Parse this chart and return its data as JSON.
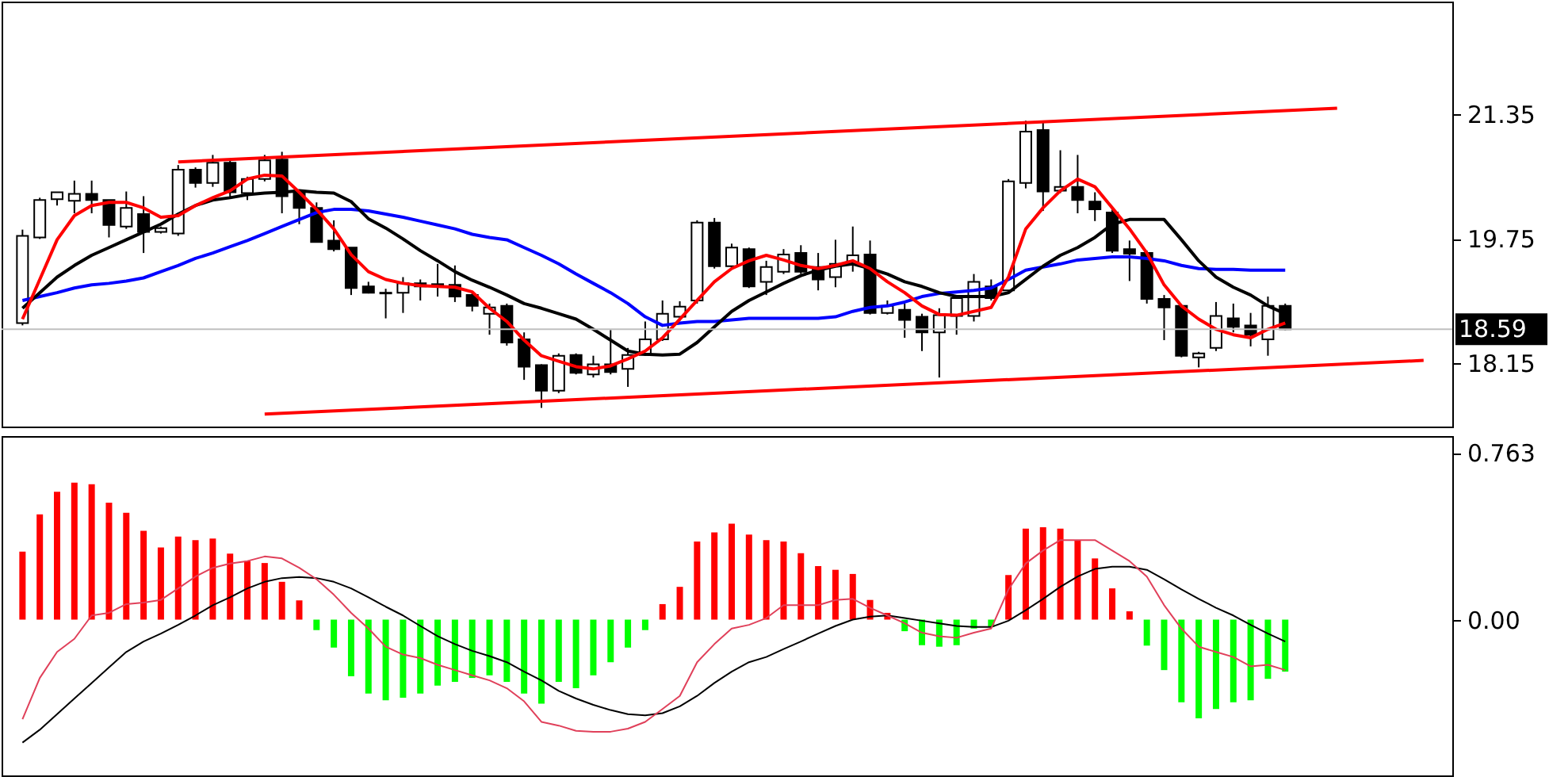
{
  "chart_data": [
    {
      "type": "candlestick",
      "categories": [
        null,
        null,
        null,
        null,
        null,
        null,
        null,
        null,
        null,
        null,
        null,
        null,
        null,
        null,
        null,
        null,
        null,
        null,
        null,
        null,
        null,
        null,
        null,
        null,
        null,
        null,
        null,
        null,
        null,
        null,
        null,
        null,
        null,
        null,
        null,
        null,
        null,
        null,
        null,
        null,
        null,
        null,
        null,
        null,
        null,
        null,
        null,
        null,
        null,
        null,
        null,
        null,
        null,
        null,
        null,
        null,
        null,
        null,
        null,
        null,
        null,
        null,
        null,
        null,
        null,
        null,
        null,
        null,
        null,
        null,
        null,
        null,
        null,
        null,
        null,
        null,
        null,
        null,
        null,
        null,
        null,
        null
      ],
      "ohlc": [
        [
          18.67,
          19.87,
          18.64,
          19.79
        ],
        [
          19.77,
          20.28,
          19.75,
          20.25
        ],
        [
          20.26,
          20.35,
          20.18,
          20.35
        ],
        [
          20.24,
          20.5,
          20.08,
          20.33
        ],
        [
          20.33,
          20.5,
          20.08,
          20.25
        ],
        [
          20.25,
          20.25,
          19.77,
          19.93
        ],
        [
          19.91,
          20.36,
          19.88,
          20.15
        ],
        [
          20.07,
          20.3,
          19.57,
          19.84
        ],
        [
          19.84,
          19.91,
          19.82,
          19.89
        ],
        [
          19.82,
          20.7,
          19.79,
          20.64
        ],
        [
          20.64,
          20.67,
          20.41,
          20.47
        ],
        [
          20.47,
          20.83,
          20.42,
          20.73
        ],
        [
          20.73,
          20.76,
          20.28,
          20.35
        ],
        [
          20.34,
          20.55,
          20.25,
          20.52
        ],
        [
          20.52,
          20.83,
          20.49,
          20.76
        ],
        [
          20.77,
          20.87,
          20.08,
          20.3
        ],
        [
          20.35,
          20.38,
          19.94,
          20.15
        ],
        [
          20.15,
          20.22,
          19.71,
          19.71
        ],
        [
          19.73,
          19.99,
          19.59,
          19.62
        ],
        [
          19.64,
          19.64,
          19.03,
          19.12
        ],
        [
          19.14,
          19.2,
          19.05,
          19.06
        ],
        [
          19.06,
          19.11,
          18.73,
          19.05
        ],
        [
          19.06,
          19.26,
          18.8,
          19.18
        ],
        [
          19.18,
          19.23,
          18.96,
          19.14
        ],
        [
          19.17,
          19.43,
          19.01,
          19.16
        ],
        [
          19.16,
          19.41,
          18.94,
          19.01
        ],
        [
          19.03,
          19.06,
          18.82,
          18.89
        ],
        [
          18.79,
          18.92,
          18.52,
          18.87
        ],
        [
          18.89,
          18.92,
          18.38,
          18.42
        ],
        [
          18.46,
          18.55,
          17.94,
          18.11
        ],
        [
          18.13,
          18.14,
          17.58,
          17.8
        ],
        [
          17.8,
          18.28,
          17.77,
          18.25
        ],
        [
          18.26,
          18.28,
          18.01,
          18.03
        ],
        [
          18.01,
          18.25,
          17.97,
          18.14
        ],
        [
          18.14,
          18.58,
          18.01,
          18.04
        ],
        [
          18.08,
          18.35,
          17.85,
          18.26
        ],
        [
          18.26,
          18.69,
          18.25,
          18.46
        ],
        [
          18.46,
          18.96,
          18.44,
          18.79
        ],
        [
          18.75,
          18.95,
          18.7,
          18.88
        ],
        [
          18.96,
          19.99,
          18.92,
          19.96
        ],
        [
          19.96,
          20.02,
          19.37,
          19.4
        ],
        [
          19.4,
          19.69,
          19.37,
          19.64
        ],
        [
          19.62,
          19.64,
          19.12,
          19.14
        ],
        [
          19.2,
          19.47,
          19.03,
          19.39
        ],
        [
          19.33,
          19.62,
          19.3,
          19.55
        ],
        [
          19.57,
          19.67,
          19.3,
          19.33
        ],
        [
          19.39,
          19.57,
          19.09,
          19.23
        ],
        [
          19.26,
          19.74,
          19.13,
          19.43
        ],
        [
          19.43,
          19.91,
          19.33,
          19.54
        ],
        [
          19.55,
          19.73,
          18.78,
          18.8
        ],
        [
          18.8,
          18.96,
          18.78,
          18.89
        ],
        [
          18.84,
          18.92,
          18.48,
          18.71
        ],
        [
          18.75,
          18.79,
          18.31,
          18.55
        ],
        [
          18.55,
          18.86,
          17.97,
          18.77
        ],
        [
          18.76,
          19.03,
          18.52,
          18.99
        ],
        [
          18.76,
          19.3,
          18.69,
          19.2
        ],
        [
          19.14,
          19.23,
          18.96,
          18.99
        ],
        [
          19.09,
          20.52,
          19.06,
          20.49
        ],
        [
          20.47,
          21.27,
          20.4,
          21.13
        ],
        [
          21.15,
          21.27,
          20.11,
          20.36
        ],
        [
          20.37,
          20.89,
          20.34,
          20.42
        ],
        [
          20.42,
          20.83,
          20.08,
          20.25
        ],
        [
          20.23,
          20.35,
          19.98,
          20.13
        ],
        [
          20.09,
          20.13,
          19.57,
          19.6
        ],
        [
          19.62,
          19.73,
          19.21,
          19.56
        ],
        [
          19.57,
          19.6,
          18.92,
          18.98
        ],
        [
          18.98,
          19.03,
          18.45,
          18.87
        ],
        [
          18.89,
          18.89,
          18.23,
          18.25
        ],
        [
          18.23,
          18.3,
          18.1,
          18.28
        ],
        [
          18.35,
          18.94,
          18.31,
          18.76
        ],
        [
          18.73,
          18.92,
          18.55,
          18.62
        ],
        [
          18.64,
          18.8,
          18.37,
          18.52
        ],
        [
          18.46,
          19.01,
          18.25,
          18.89
        ],
        [
          18.89,
          18.92,
          18.58,
          18.59
        ],
        null,
        null,
        null,
        null,
        null,
        null,
        null,
        null
      ],
      "series": [
        {
          "type": "line",
          "color": "#0000ff",
          "values": [
            18.96,
            19.01,
            19.06,
            19.12,
            19.16,
            19.18,
            19.21,
            19.25,
            19.33,
            19.41,
            19.5,
            19.57,
            19.65,
            19.73,
            19.82,
            19.91,
            20.0,
            20.09,
            20.13,
            20.13,
            20.11,
            20.07,
            20.03,
            19.98,
            19.93,
            19.88,
            19.81,
            19.77,
            19.74,
            19.64,
            19.54,
            19.43,
            19.3,
            19.18,
            19.06,
            18.92,
            18.75,
            18.64,
            18.67,
            18.69,
            18.69,
            18.71,
            18.73,
            18.73,
            18.73,
            18.73,
            18.73,
            18.75,
            18.82,
            18.87,
            18.89,
            18.94,
            19.01,
            19.05,
            19.07,
            19.09,
            19.12,
            19.23,
            19.35,
            19.39,
            19.43,
            19.48,
            19.5,
            19.52,
            19.52,
            19.5,
            19.47,
            19.41,
            19.37,
            19.36,
            19.36,
            19.35,
            19.35,
            19.35,
            null,
            null,
            null,
            null,
            null,
            null,
            null,
            null
          ]
        },
        {
          "type": "line",
          "color": "#000000",
          "values": [
            18.86,
            19.06,
            19.26,
            19.41,
            19.54,
            19.64,
            19.74,
            19.84,
            19.94,
            20.07,
            20.18,
            20.25,
            20.28,
            20.32,
            20.34,
            20.35,
            20.37,
            20.35,
            20.34,
            20.23,
            20.01,
            19.89,
            19.75,
            19.6,
            19.47,
            19.33,
            19.22,
            19.13,
            19.03,
            18.92,
            18.86,
            18.79,
            18.72,
            18.59,
            18.45,
            18.31,
            18.27,
            18.26,
            18.27,
            18.42,
            18.62,
            18.82,
            18.96,
            19.07,
            19.18,
            19.28,
            19.35,
            19.4,
            19.43,
            19.37,
            19.3,
            19.2,
            19.14,
            19.06,
            19.01,
            19.01,
            19.01,
            19.06,
            19.23,
            19.4,
            19.54,
            19.64,
            19.77,
            19.94,
            20.0,
            20.0,
            20.0,
            19.74,
            19.47,
            19.26,
            19.13,
            19.03,
            18.89,
            18.79,
            null,
            null,
            null,
            null,
            null,
            null,
            null,
            null
          ]
        },
        {
          "type": "line",
          "color": "#ff0000",
          "values": [
            18.72,
            19.23,
            19.74,
            20.05,
            20.18,
            20.22,
            20.22,
            20.15,
            20.03,
            20.05,
            20.18,
            20.28,
            20.37,
            20.52,
            20.57,
            20.56,
            20.35,
            20.13,
            19.88,
            19.55,
            19.33,
            19.23,
            19.18,
            19.15,
            19.14,
            19.13,
            19.07,
            18.86,
            18.69,
            18.45,
            18.25,
            18.18,
            18.11,
            18.08,
            18.12,
            18.21,
            18.31,
            18.48,
            18.72,
            18.96,
            19.2,
            19.37,
            19.47,
            19.54,
            19.48,
            19.41,
            19.37,
            19.41,
            19.47,
            19.37,
            19.2,
            19.06,
            18.89,
            18.78,
            18.77,
            18.82,
            18.87,
            19.26,
            19.88,
            20.15,
            20.37,
            20.52,
            20.42,
            20.15,
            19.88,
            19.57,
            19.16,
            18.89,
            18.72,
            18.59,
            18.52,
            18.48,
            18.59,
            18.67,
            null,
            null,
            null,
            null,
            null,
            null,
            null,
            null
          ]
        },
        {
          "type": "line",
          "color": "#ff0000",
          "values": [
            null,
            null,
            null,
            null,
            null,
            null,
            null,
            null,
            null,
            20.74,
            null,
            null,
            null,
            null,
            null,
            null,
            null,
            null,
            null,
            null,
            null,
            null,
            null,
            null,
            null,
            null,
            null,
            null,
            null,
            null,
            null,
            null,
            null,
            null,
            null,
            null,
            null,
            null,
            null,
            null,
            null,
            null,
            null,
            null,
            null,
            null,
            null,
            null,
            null,
            null,
            null,
            null,
            null,
            null,
            null,
            null,
            null,
            null,
            null,
            null,
            null,
            null,
            null,
            null,
            null,
            null,
            null,
            null,
            null,
            null,
            null,
            null,
            null,
            null,
            null,
            null,
            21.43,
            null,
            null,
            null,
            null,
            null
          ]
        },
        {
          "type": "line",
          "color": "#ff0000",
          "values": [
            null,
            null,
            null,
            null,
            null,
            null,
            null,
            null,
            null,
            null,
            null,
            null,
            null,
            null,
            17.5,
            null,
            null,
            null,
            null,
            null,
            null,
            null,
            null,
            null,
            null,
            null,
            null,
            null,
            null,
            null,
            null,
            null,
            null,
            null,
            null,
            null,
            null,
            null,
            null,
            null,
            null,
            null,
            null,
            null,
            null,
            null,
            null,
            null,
            null,
            null,
            null,
            null,
            null,
            null,
            null,
            null,
            null,
            null,
            null,
            null,
            null,
            null,
            null,
            null,
            null,
            null,
            null,
            null,
            null,
            null,
            null,
            null,
            null,
            null,
            null,
            null,
            null,
            null,
            null,
            null,
            null,
            18.19
          ]
        }
      ],
      "ylim": [
        17.34,
        22.8
      ],
      "yticks": [
        18.15,
        19.75,
        21.35
      ],
      "ref_lines": [
        {
          "axis": "y",
          "value": 18.59,
          "label": "18.59",
          "color": "#c0c0c0"
        }
      ],
      "tick_labels": "y"
    },
    {
      "type": "bar",
      "categories": [
        null,
        null,
        null,
        null,
        null,
        null,
        null,
        null,
        null,
        null,
        null,
        null,
        null,
        null,
        null,
        null,
        null,
        null,
        null,
        null,
        null,
        null,
        null,
        null,
        null,
        null,
        null,
        null,
        null,
        null,
        null,
        null,
        null,
        null,
        null,
        null,
        null,
        null,
        null,
        null,
        null,
        null,
        null,
        null,
        null,
        null,
        null,
        null,
        null,
        null,
        null,
        null,
        null,
        null,
        null,
        null,
        null,
        null,
        null,
        null,
        null,
        null,
        null,
        null,
        null,
        null,
        null,
        null,
        null,
        null,
        null,
        null,
        null,
        null,
        null,
        null,
        null,
        null,
        null,
        null,
        null,
        null
      ],
      "series": [
        {
          "type": "bar",
          "values": [
            0.311,
            0.482,
            0.585,
            0.627,
            0.62,
            0.535,
            0.489,
            0.406,
            0.33,
            0.38,
            0.364,
            0.371,
            0.302,
            0.268,
            0.259,
            0.173,
            0.088,
            -0.048,
            -0.128,
            -0.259,
            -0.338,
            -0.369,
            -0.357,
            -0.338,
            -0.302,
            -0.285,
            -0.267,
            -0.255,
            -0.285,
            -0.338,
            -0.385,
            -0.285,
            -0.314,
            -0.255,
            -0.195,
            -0.128,
            -0.048,
            0.071,
            0.15,
            0.357,
            0.399,
            0.439,
            0.389,
            0.364,
            0.357,
            0.304,
            0.245,
            0.228,
            0.209,
            0.09,
            0.031,
            -0.053,
            -0.117,
            -0.124,
            -0.117,
            -0.041,
            -0.034,
            0.204,
            0.416,
            0.423,
            0.416,
            0.364,
            0.28,
            0.143,
            0.038,
            -0.119,
            -0.231,
            -0.378,
            -0.452,
            -0.409,
            -0.378,
            -0.369,
            -0.271,
            -0.238,
            null,
            null,
            null,
            null,
            null,
            null,
            null,
            null
          ],
          "colors": [
            "#ff0000",
            "#ff0000",
            "#ff0000",
            "#ff0000",
            "#ff0000",
            "#ff0000",
            "#ff0000",
            "#ff0000",
            "#ff0000",
            "#ff0000",
            "#ff0000",
            "#ff0000",
            "#ff0000",
            "#ff0000",
            "#ff0000",
            "#ff0000",
            "#ff0000",
            "#00ff00",
            "#00ff00",
            "#00ff00",
            "#00ff00",
            "#00ff00",
            "#00ff00",
            "#00ff00",
            "#00ff00",
            "#00ff00",
            "#00ff00",
            "#00ff00",
            "#00ff00",
            "#00ff00",
            "#00ff00",
            "#00ff00",
            "#00ff00",
            "#00ff00",
            "#00ff00",
            "#00ff00",
            "#00ff00",
            "#ff0000",
            "#ff0000",
            "#ff0000",
            "#ff0000",
            "#ff0000",
            "#ff0000",
            "#ff0000",
            "#ff0000",
            "#ff0000",
            "#ff0000",
            "#ff0000",
            "#ff0000",
            "#ff0000",
            "#ff0000",
            "#00ff00",
            "#00ff00",
            "#00ff00",
            "#00ff00",
            "#00ff00",
            "#00ff00",
            "#ff0000",
            "#ff0000",
            "#ff0000",
            "#ff0000",
            "#ff0000",
            "#ff0000",
            "#ff0000",
            "#ff0000",
            "#00ff00",
            "#00ff00",
            "#00ff00",
            "#00ff00",
            "#00ff00",
            "#00ff00",
            "#00ff00",
            "#00ff00",
            "#00ff00",
            null,
            null,
            null,
            null,
            null,
            null,
            null,
            null
          ]
        },
        {
          "type": "line",
          "color": "#000000",
          "values": [
            -0.563,
            -0.504,
            -0.433,
            -0.361,
            -0.29,
            -0.219,
            -0.148,
            -0.1,
            -0.064,
            -0.024,
            0.019,
            0.066,
            0.102,
            0.143,
            0.173,
            0.19,
            0.195,
            0.19,
            0.173,
            0.143,
            0.102,
            0.059,
            0.019,
            -0.029,
            -0.076,
            -0.112,
            -0.143,
            -0.167,
            -0.195,
            -0.238,
            -0.278,
            -0.326,
            -0.361,
            -0.39,
            -0.414,
            -0.433,
            -0.438,
            -0.428,
            -0.397,
            -0.349,
            -0.29,
            -0.238,
            -0.195,
            -0.171,
            -0.135,
            -0.1,
            -0.064,
            -0.029,
            0,
            0.014,
            0.019,
            0.007,
            -0.005,
            -0.017,
            -0.029,
            -0.034,
            -0.034,
            -0.005,
            0.043,
            0.095,
            0.15,
            0.197,
            0.232,
            0.242,
            0.242,
            0.228,
            0.185,
            0.138,
            0.095,
            0.054,
            0.019,
            -0.024,
            -0.064,
            -0.1,
            null,
            null,
            null,
            null,
            null,
            null,
            null,
            null
          ]
        },
        {
          "type": "line",
          "color": "#e0405a",
          "values": [
            -0.456,
            -0.267,
            -0.148,
            -0.088,
            0.019,
            0.031,
            0.071,
            0.078,
            0.09,
            0.143,
            0.197,
            0.237,
            0.257,
            0.268,
            0.289,
            0.28,
            0.237,
            0.185,
            0.114,
            0.031,
            -0.041,
            -0.124,
            -0.16,
            -0.176,
            -0.207,
            -0.231,
            -0.255,
            -0.278,
            -0.314,
            -0.374,
            -0.468,
            -0.485,
            -0.509,
            -0.513,
            -0.513,
            -0.499,
            -0.468,
            -0.409,
            -0.349,
            -0.195,
            -0.112,
            -0.041,
            -0.024,
            0.007,
            0.066,
            0.066,
            0.066,
            0.09,
            0.095,
            0.054,
            0.019,
            -0.017,
            -0.06,
            -0.076,
            -0.083,
            -0.06,
            -0.041,
            0.138,
            0.257,
            0.316,
            0.364,
            0.364,
            0.364,
            0.316,
            0.268,
            0.197,
            0.066,
            -0.041,
            -0.124,
            -0.148,
            -0.171,
            -0.214,
            -0.207,
            -0.231,
            null,
            null,
            null,
            null,
            null,
            null,
            null,
            null
          ]
        }
      ],
      "ylim": [
        -0.713,
        0.84
      ],
      "yticks": [
        0.763,
        {
          "value": 0,
          "label": "0.00"
        }
      ],
      "tick_labels": "y"
    }
  ]
}
